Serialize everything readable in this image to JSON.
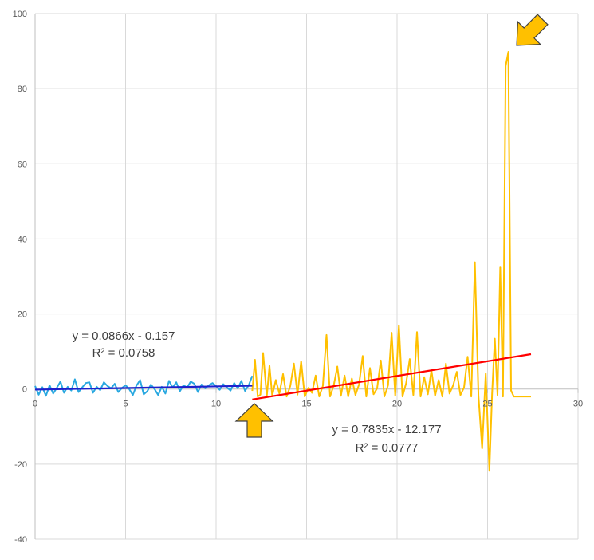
{
  "chart_data": {
    "type": "line",
    "xlim": [
      0,
      30
    ],
    "ylim": [
      -40,
      100
    ],
    "x_ticks": [
      0,
      5,
      10,
      15,
      20,
      25,
      30
    ],
    "y_ticks": [
      -40,
      -20,
      0,
      20,
      40,
      60,
      80,
      100
    ],
    "x_tick_labels": [
      "0",
      "5",
      "10",
      "15",
      "20",
      "25",
      "30"
    ],
    "y_tick_labels": [
      "-40",
      "-20",
      "0",
      "20",
      "40",
      "60",
      "80",
      "100"
    ],
    "grid": true,
    "colors": {
      "series1": "#29a8e0",
      "series2": "#ffc000",
      "trend1": "#1f1fcc",
      "trend2": "#ff0000",
      "grid": "#d9d9d9",
      "axis": "#bfbfbf",
      "arrow_fill": "#ffc000",
      "arrow_stroke": "#404040"
    },
    "series": [
      {
        "x": [
          0,
          0.2,
          0.4,
          0.6,
          0.8,
          1.0,
          1.2,
          1.4,
          1.6,
          1.8,
          2.0,
          2.2,
          2.4,
          2.6,
          2.8,
          3.0,
          3.2,
          3.4,
          3.6,
          3.8,
          4.0,
          4.2,
          4.4,
          4.6,
          4.8,
          5.0,
          5.2,
          5.4,
          5.6,
          5.8,
          6.0,
          6.2,
          6.4,
          6.6,
          6.8,
          7.0,
          7.2,
          7.4,
          7.6,
          7.8,
          8.0,
          8.2,
          8.4,
          8.6,
          8.8,
          9.0,
          9.2,
          9.4,
          9.6,
          9.8,
          10.0,
          10.2,
          10.4,
          10.6,
          10.8,
          11.0,
          11.2,
          11.4,
          11.6,
          11.8,
          12.0
        ],
        "values": [
          0.8,
          -1.5,
          0.5,
          -1.8,
          1.0,
          -1.2,
          0.3,
          2.0,
          -1.0,
          0.6,
          -0.4,
          2.6,
          -0.8,
          0.4,
          1.6,
          1.8,
          -1.0,
          0.6,
          -0.3,
          1.8,
          0.8,
          0.2,
          1.4,
          -0.8,
          0.3,
          1.0,
          0.0,
          -1.6,
          0.9,
          2.4,
          -1.4,
          -0.6,
          1.2,
          0.0,
          -1.6,
          0.6,
          -1.2,
          2.2,
          0.4,
          1.8,
          -0.6,
          1.0,
          0.4,
          2.0,
          1.4,
          -0.8,
          1.2,
          0.2,
          1.0,
          1.6,
          0.8,
          -0.2,
          1.3,
          0.4,
          -0.4,
          1.6,
          0.2,
          2.2,
          -0.5,
          1.0,
          3.5
        ]
      },
      {
        "x": [
          12.0,
          12.15,
          12.3,
          12.45,
          12.6,
          12.8,
          12.95,
          13.1,
          13.3,
          13.5,
          13.7,
          13.9,
          14.1,
          14.3,
          14.5,
          14.7,
          14.9,
          15.1,
          15.3,
          15.5,
          15.7,
          15.9,
          16.1,
          16.3,
          16.5,
          16.7,
          16.9,
          17.1,
          17.3,
          17.5,
          17.7,
          17.9,
          18.1,
          18.3,
          18.5,
          18.7,
          18.9,
          19.1,
          19.3,
          19.5,
          19.7,
          19.9,
          20.1,
          20.3,
          20.5,
          20.7,
          20.9,
          21.1,
          21.3,
          21.5,
          21.7,
          21.9,
          22.1,
          22.3,
          22.5,
          22.7,
          22.9,
          23.1,
          23.3,
          23.5,
          23.7,
          23.9,
          24.1,
          24.3,
          24.5,
          24.7,
          24.9,
          25.1,
          25.25,
          25.4,
          25.55,
          25.7,
          25.85,
          26.0,
          26.15,
          26.3,
          26.45,
          26.6,
          26.75,
          26.9,
          27.05,
          27.2,
          27.4
        ],
        "values": [
          -0.5,
          7.8,
          -2.0,
          -1.5,
          9.6,
          -2.0,
          6.2,
          -1.8,
          2.4,
          -1.2,
          4.0,
          -2.0,
          0.8,
          6.8,
          -1.5,
          7.4,
          -2.0,
          0.3,
          -1.0,
          3.6,
          -2.0,
          0.8,
          14.4,
          -2.0,
          1.0,
          6.0,
          -1.8,
          3.6,
          -2.0,
          2.8,
          -1.6,
          1.2,
          8.8,
          -2.0,
          5.6,
          -1.4,
          0.2,
          7.6,
          -2.0,
          1.0,
          15.0,
          -1.8,
          17.0,
          -2.0,
          1.6,
          8.0,
          -1.6,
          15.2,
          -2.0,
          3.2,
          -1.4,
          5.0,
          -1.8,
          2.4,
          -2.0,
          6.8,
          -1.2,
          1.0,
          4.6,
          -1.6,
          0.4,
          8.6,
          -2.0,
          33.8,
          -1.8,
          -15.8,
          4.2,
          -21.8,
          -1.2,
          13.4,
          -1.6,
          32.4,
          -2.0,
          86.0,
          89.8,
          -0.4,
          -2.0,
          -2.0,
          -2.0,
          -2.0,
          -2.0,
          -2.0,
          -2.0
        ]
      }
    ],
    "trendlines": [
      {
        "x": [
          0,
          12
        ],
        "y": [
          -0.157,
          0.882
        ],
        "equation": "y = 0.0866x - 0.157",
        "r2": "R² = 0.0758"
      },
      {
        "x": [
          12,
          27.4
        ],
        "y": [
          -2.775,
          9.29
        ],
        "equation": "y = 0.7835x - 12.177",
        "r2": "R² = 0.0777"
      }
    ],
    "arrows": [
      {
        "icon": "arrow-up-icon",
        "direction": "up"
      },
      {
        "icon": "arrow-down-left-icon",
        "direction": "down-left"
      }
    ]
  }
}
